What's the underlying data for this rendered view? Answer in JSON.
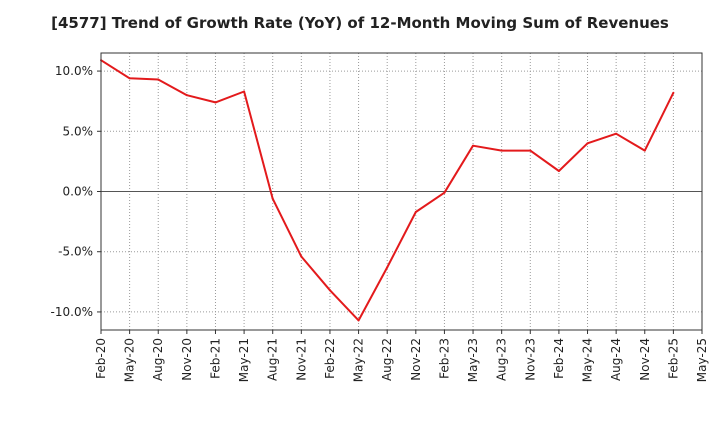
{
  "chart_data": {
    "type": "line",
    "title": "[4577]  Trend of Growth Rate (YoY) of 12-Month Moving Sum of Revenues",
    "xlabel": "",
    "ylabel": "",
    "x_tick_labels": [
      "Feb-20",
      "May-20",
      "Aug-20",
      "Nov-20",
      "Feb-21",
      "May-21",
      "Aug-21",
      "Nov-21",
      "Feb-22",
      "May-22",
      "Aug-22",
      "Nov-22",
      "Feb-23",
      "May-23",
      "Aug-23",
      "Nov-23",
      "Feb-24",
      "May-24",
      "Aug-24",
      "Nov-24",
      "Feb-25",
      "May-25"
    ],
    "y_ticks": [
      10.0,
      5.0,
      0.0,
      -5.0,
      -10.0
    ],
    "y_tick_labels": [
      "10.0%",
      "5.0%",
      "0.0%",
      "-5.0%",
      "-10.0%"
    ],
    "ylim": [
      -11.5,
      11.5
    ],
    "grid": true,
    "series": [
      {
        "color": "#e31a1c",
        "x": [
          "Feb-20",
          "May-20",
          "Aug-20",
          "Nov-20",
          "Feb-21",
          "May-21",
          "Aug-21",
          "Nov-21",
          "Feb-22",
          "May-22",
          "Aug-22",
          "Nov-22",
          "Feb-23",
          "May-23",
          "Aug-23",
          "Nov-23",
          "Feb-24",
          "May-24",
          "Aug-24",
          "Nov-24",
          "Feb-25"
        ],
        "values": [
          10.9,
          9.4,
          9.3,
          8.0,
          7.4,
          8.3,
          -0.6,
          -5.4,
          -8.2,
          -10.7,
          -6.3,
          -1.7,
          -0.1,
          3.8,
          3.4,
          3.4,
          1.7,
          4.0,
          4.8,
          3.4,
          8.2
        ]
      }
    ]
  }
}
